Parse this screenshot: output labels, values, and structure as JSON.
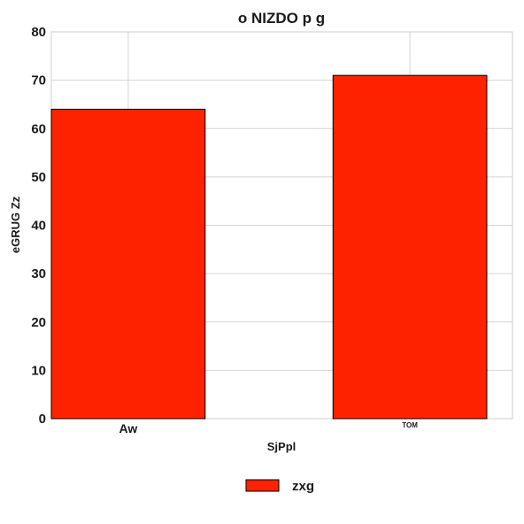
{
  "chart_data": {
    "type": "bar",
    "title": "o NIZDO p g",
    "xlabel": "SjPpl",
    "ylabel": "eGRUG Zz",
    "categories": [
      "Aw",
      "TOM"
    ],
    "series": [
      {
        "name": "zxg",
        "values": [
          64,
          71
        ],
        "color": "#ff2200"
      }
    ],
    "ylim": [
      0,
      80
    ],
    "yticks": [
      "0",
      "10",
      "20",
      "30",
      "40",
      "50",
      "60",
      "70",
      "80"
    ],
    "grid": true,
    "legend": "bottom-center"
  }
}
